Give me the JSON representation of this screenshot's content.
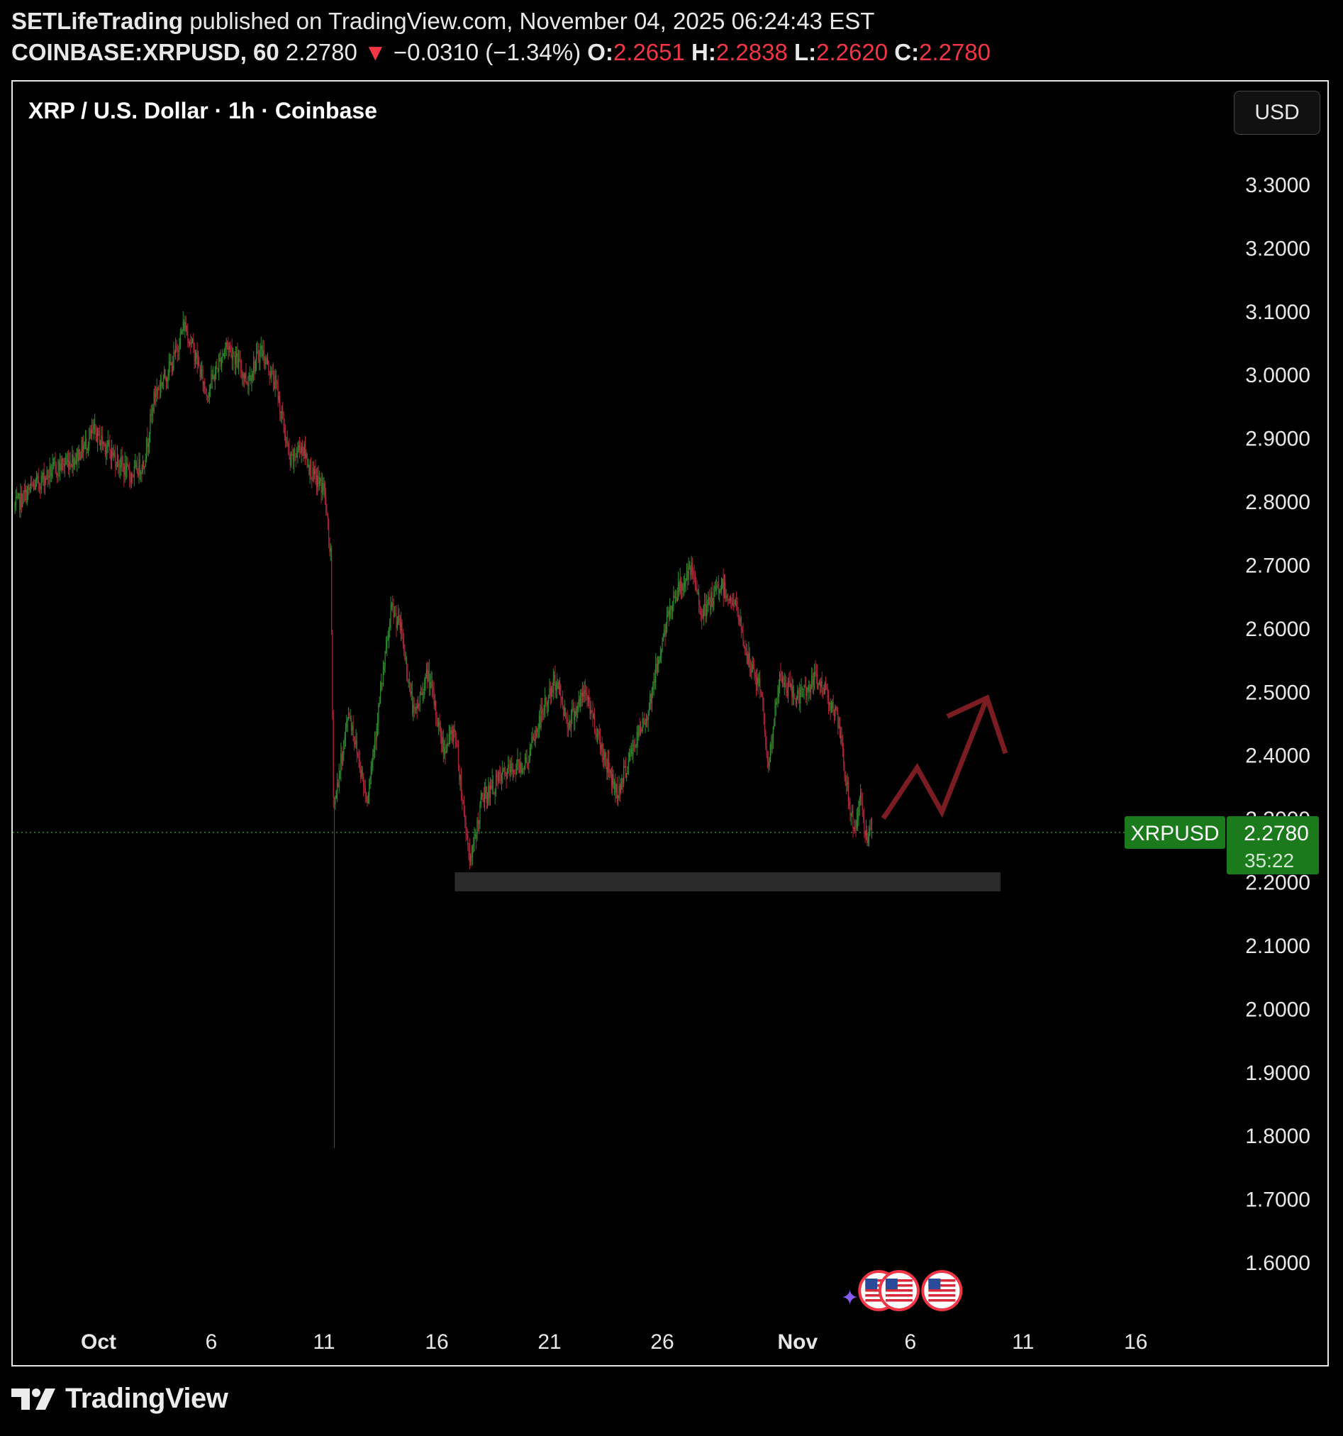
{
  "header": {
    "author": "SETLifeTrading",
    "published_text": "published on TradingView.com, November 04, 2025 06:24:43 EST",
    "symbol_line": "COINBASE:XRPUSD, 60",
    "last_price": "2.2780",
    "change_arrow": "▼",
    "change": "−0.0310 (−1.34%)",
    "ohlc": [
      {
        "label": "O:",
        "value": "2.2651"
      },
      {
        "label": "H:",
        "value": "2.2838"
      },
      {
        "label": "L:",
        "value": "2.2620"
      },
      {
        "label": "C:",
        "value": "2.2780"
      }
    ]
  },
  "chart_title": "XRP / U.S. Dollar · 1h · Coinbase",
  "currency_button": "USD",
  "price_tag": {
    "symbol": "XRPUSD",
    "price": "2.2780",
    "countdown": "35:22"
  },
  "footer": {
    "brand": "TradingView"
  },
  "colors": {
    "up": "#22ab94",
    "down": "#f23645",
    "candle_up": "#2e8b2e",
    "candle_down": "#b0243a",
    "arrow": "#7a1c22",
    "zone": "#2b2b2b",
    "tag_green": "#1b7a1b",
    "event_flag_ring": "#f23645"
  },
  "icons": [
    "tradingview-logo-icon",
    "us-flag-event-icon",
    "sparkle-icon"
  ],
  "chart_data": {
    "type": "candlestick",
    "title": "XRP / U.S. Dollar · 1h · Coinbase",
    "y_ticks": [
      "3.3000",
      "3.2000",
      "3.1000",
      "3.0000",
      "2.9000",
      "2.8000",
      "2.7000",
      "2.6000",
      "2.5000",
      "2.4000",
      "2.3000",
      "2.2000",
      "2.1000",
      "2.0000",
      "1.9000",
      "1.8000",
      "1.7000",
      "1.6000"
    ],
    "ylim": [
      1.55,
      3.35
    ],
    "x_ticks": [
      {
        "label": "Oct",
        "day": 1
      },
      {
        "label": "6",
        "day": 6
      },
      {
        "label": "11",
        "day": 11
      },
      {
        "label": "16",
        "day": 16
      },
      {
        "label": "21",
        "day": 21
      },
      {
        "label": "26",
        "day": 26
      },
      {
        "label": "Nov",
        "day": 32
      },
      {
        "label": "6",
        "day": 37
      },
      {
        "label": "11",
        "day": 42
      },
      {
        "label": "16",
        "day": 47
      }
    ],
    "price_path": [
      [
        -3.0,
        2.78
      ],
      [
        -2.0,
        2.82
      ],
      [
        -1.0,
        2.85
      ],
      [
        0.0,
        2.87
      ],
      [
        0.8,
        2.91
      ],
      [
        1.5,
        2.88
      ],
      [
        2.4,
        2.84
      ],
      [
        3.0,
        2.86
      ],
      [
        3.5,
        2.97
      ],
      [
        4.3,
        3.02
      ],
      [
        4.8,
        3.08
      ],
      [
        5.3,
        3.03
      ],
      [
        5.8,
        2.97
      ],
      [
        6.7,
        3.05
      ],
      [
        7.6,
        2.99
      ],
      [
        8.2,
        3.04
      ],
      [
        8.9,
        2.98
      ],
      [
        9.5,
        2.86
      ],
      [
        10.0,
        2.89
      ],
      [
        10.5,
        2.84
      ],
      [
        11.0,
        2.82
      ],
      [
        11.3,
        2.71
      ],
      [
        11.4,
        2.36
      ],
      [
        11.45,
        2.32
      ],
      [
        12.1,
        2.47
      ],
      [
        12.9,
        2.33
      ],
      [
        13.3,
        2.44
      ],
      [
        14.0,
        2.63
      ],
      [
        14.4,
        2.6
      ],
      [
        15.0,
        2.46
      ],
      [
        15.6,
        2.53
      ],
      [
        16.3,
        2.41
      ],
      [
        16.8,
        2.44
      ],
      [
        17.2,
        2.31
      ],
      [
        17.5,
        2.23
      ],
      [
        18.0,
        2.33
      ],
      [
        19.0,
        2.37
      ],
      [
        20.0,
        2.39
      ],
      [
        20.7,
        2.47
      ],
      [
        21.3,
        2.52
      ],
      [
        21.8,
        2.45
      ],
      [
        22.6,
        2.5
      ],
      [
        23.4,
        2.4
      ],
      [
        24.0,
        2.34
      ],
      [
        24.8,
        2.42
      ],
      [
        25.3,
        2.46
      ],
      [
        26.0,
        2.58
      ],
      [
        26.5,
        2.65
      ],
      [
        27.3,
        2.69
      ],
      [
        27.8,
        2.62
      ],
      [
        28.6,
        2.67
      ],
      [
        29.3,
        2.63
      ],
      [
        29.8,
        2.55
      ],
      [
        30.4,
        2.5
      ],
      [
        30.7,
        2.38
      ],
      [
        31.2,
        2.52
      ],
      [
        32.0,
        2.49
      ],
      [
        32.8,
        2.52
      ],
      [
        33.3,
        2.5
      ],
      [
        33.8,
        2.45
      ],
      [
        34.1,
        2.37
      ],
      [
        34.5,
        2.28
      ],
      [
        34.8,
        2.33
      ],
      [
        35.1,
        2.26
      ],
      [
        35.3,
        2.278
      ]
    ],
    "notable_points": {
      "wick_low": {
        "day": 11.45,
        "price": 1.78
      },
      "swing_low": {
        "day": 17.5,
        "price": 2.2
      },
      "swing_high": {
        "day": 27.3,
        "price": 2.7
      },
      "last": {
        "day": 35.3,
        "price": 2.278
      }
    },
    "support_zone": {
      "day_start": 16.8,
      "day_end": 41.0,
      "price_low": 2.185,
      "price_high": 2.215
    },
    "projection_arrow": [
      [
        35.8,
        2.3
      ],
      [
        37.3,
        2.38
      ],
      [
        38.4,
        2.31
      ],
      [
        40.4,
        2.49
      ]
    ],
    "last_price_line": 2.278,
    "event_markers_days": [
      35.6,
      36.5,
      38.4
    ]
  }
}
